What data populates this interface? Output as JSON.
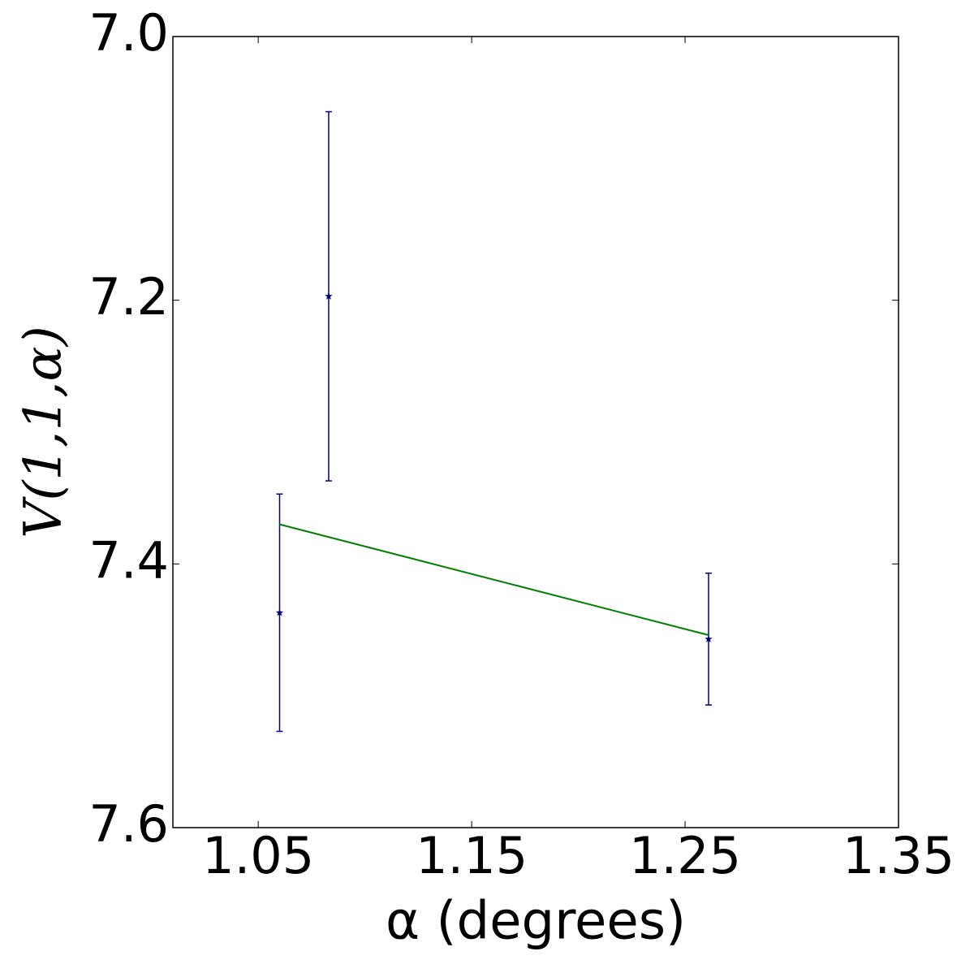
{
  "chart_data": {
    "type": "errorbar",
    "xlabel": "α (degrees)",
    "ylabel": "V(1,1,α)",
    "xlim": [
      1.01,
      1.35
    ],
    "xticks": [
      1.05,
      1.15,
      1.25,
      1.35
    ],
    "ylim": [
      7.0,
      7.6
    ],
    "y_inverted": true,
    "yticks": [
      {
        "value": 7,
        "label": "7.0"
      },
      7.2,
      7.4,
      7.6
    ],
    "series": [
      {
        "color": "#000080",
        "marker": "star",
        "x": [
          1.06,
          1.083,
          1.261
        ],
        "values": [
          7.437,
          7.197,
          7.457
        ],
        "errors": [
          0.09,
          0.14,
          0.05
        ]
      },
      {
        "color": "#008000",
        "x": [
          1.06,
          1.261
        ],
        "values": [
          7.37,
          7.454
        ]
      }
    ]
  }
}
